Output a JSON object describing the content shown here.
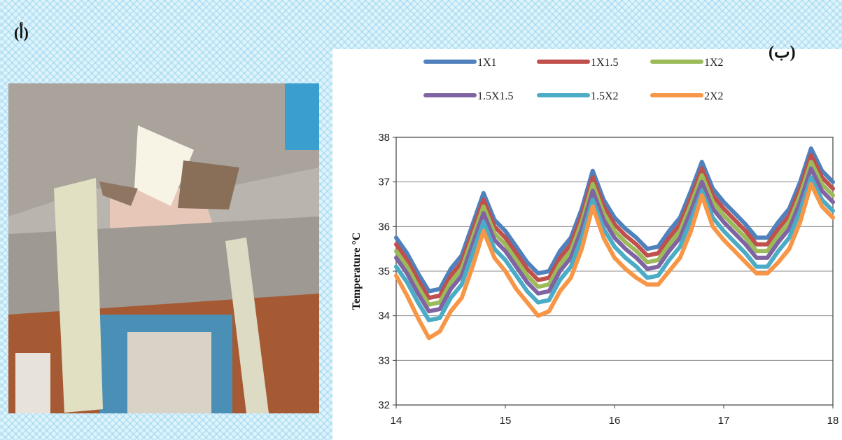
{
  "panel_a": {
    "label": "(أ)"
  },
  "panel_b": {
    "label": "(ب)"
  },
  "chart_data": {
    "type": "line",
    "title": "",
    "xlabel": "",
    "ylabel": "Temperature °C",
    "xlim": [
      14,
      18
    ],
    "ylim": [
      32,
      38
    ],
    "xticks": [
      14,
      15,
      16,
      17,
      18
    ],
    "yticks": [
      32,
      33,
      34,
      35,
      36,
      37,
      38
    ],
    "grid": "horizontal",
    "legend_position": "top",
    "x": [
      14,
      14.1,
      14.2,
      14.3,
      14.4,
      14.5,
      14.6,
      14.7,
      14.8,
      14.9,
      15,
      15.1,
      15.2,
      15.3,
      15.4,
      15.5,
      15.6,
      15.7,
      15.8,
      15.9,
      16,
      16.1,
      16.2,
      16.3,
      16.4,
      16.5,
      16.6,
      16.7,
      16.8,
      16.9,
      17,
      17.1,
      17.2,
      17.3,
      17.4,
      17.5,
      17.6,
      17.7,
      17.8,
      17.9,
      18
    ],
    "series": [
      {
        "name": "1X1",
        "color": "#4f81bd",
        "values": [
          35.75,
          35.4,
          34.95,
          34.55,
          34.6,
          35.05,
          35.35,
          36.05,
          36.75,
          36.15,
          35.9,
          35.55,
          35.2,
          34.95,
          35.0,
          35.45,
          35.75,
          36.4,
          37.25,
          36.6,
          36.2,
          35.95,
          35.75,
          35.5,
          35.55,
          35.9,
          36.2,
          36.8,
          37.45,
          36.85,
          36.55,
          36.3,
          36.05,
          35.75,
          35.75,
          36.1,
          36.4,
          37.0,
          37.75,
          37.25,
          37.0
        ]
      },
      {
        "name": "1X1.5",
        "color": "#c0504d",
        "values": [
          35.6,
          35.25,
          34.8,
          34.4,
          34.45,
          34.9,
          35.2,
          35.9,
          36.6,
          36.0,
          35.75,
          35.4,
          35.05,
          34.8,
          34.85,
          35.3,
          35.6,
          36.25,
          37.1,
          36.45,
          36.05,
          35.8,
          35.6,
          35.35,
          35.4,
          35.75,
          36.05,
          36.65,
          37.3,
          36.7,
          36.4,
          36.15,
          35.9,
          35.6,
          35.6,
          35.95,
          36.25,
          36.85,
          37.6,
          37.1,
          36.85
        ]
      },
      {
        "name": "1X2",
        "color": "#9bbb59",
        "values": [
          35.45,
          35.1,
          34.65,
          34.25,
          34.3,
          34.75,
          35.05,
          35.75,
          36.45,
          35.85,
          35.6,
          35.25,
          34.9,
          34.65,
          34.7,
          35.15,
          35.45,
          36.1,
          36.95,
          36.3,
          35.9,
          35.65,
          35.45,
          35.2,
          35.25,
          35.6,
          35.9,
          36.5,
          37.15,
          36.55,
          36.25,
          36.0,
          35.75,
          35.45,
          35.45,
          35.8,
          36.1,
          36.7,
          37.45,
          36.95,
          36.7
        ]
      },
      {
        "name": "1.5X1.5",
        "color": "#8064a2",
        "values": [
          35.3,
          34.95,
          34.5,
          34.1,
          34.15,
          34.6,
          34.9,
          35.6,
          36.3,
          35.7,
          35.45,
          35.1,
          34.75,
          34.5,
          34.55,
          35.0,
          35.3,
          35.95,
          36.8,
          36.15,
          35.75,
          35.5,
          35.3,
          35.05,
          35.1,
          35.45,
          35.75,
          36.35,
          37.0,
          36.4,
          36.1,
          35.85,
          35.6,
          35.3,
          35.3,
          35.65,
          35.95,
          36.55,
          37.3,
          36.8,
          36.55
        ]
      },
      {
        "name": "1.5X2",
        "color": "#4bacc6",
        "values": [
          35.1,
          34.75,
          34.3,
          33.9,
          33.95,
          34.4,
          34.7,
          35.4,
          36.1,
          35.5,
          35.25,
          34.9,
          34.55,
          34.3,
          34.35,
          34.8,
          35.1,
          35.75,
          36.6,
          35.95,
          35.55,
          35.3,
          35.1,
          34.85,
          34.9,
          35.25,
          35.55,
          36.15,
          36.8,
          36.2,
          35.9,
          35.65,
          35.4,
          35.1,
          35.1,
          35.45,
          35.75,
          36.35,
          37.1,
          36.6,
          36.35
        ]
      },
      {
        "name": "2X2",
        "color": "#f79646",
        "values": [
          34.9,
          34.45,
          33.95,
          33.5,
          33.65,
          34.1,
          34.4,
          35.1,
          35.9,
          35.3,
          35.0,
          34.6,
          34.3,
          34.0,
          34.1,
          34.55,
          34.85,
          35.5,
          36.45,
          35.75,
          35.3,
          35.05,
          34.85,
          34.7,
          34.7,
          35.0,
          35.3,
          35.9,
          36.7,
          36.0,
          35.7,
          35.45,
          35.2,
          34.95,
          34.95,
          35.2,
          35.5,
          36.1,
          36.95,
          36.45,
          36.2
        ]
      }
    ]
  }
}
